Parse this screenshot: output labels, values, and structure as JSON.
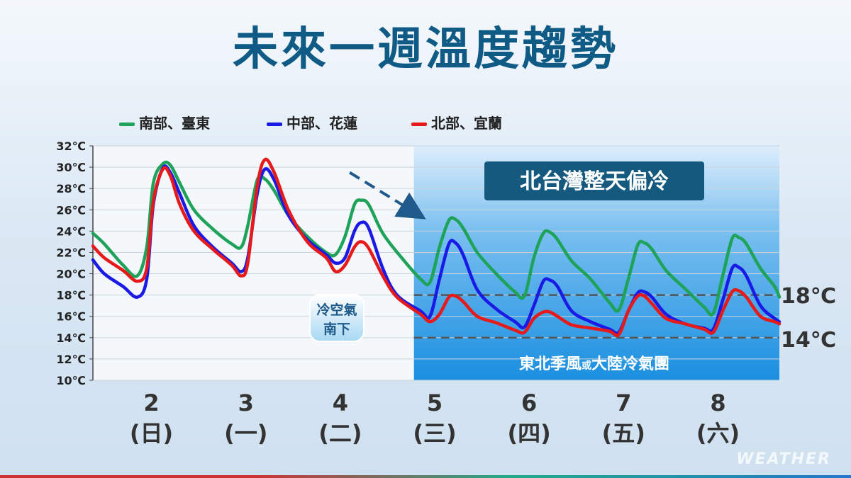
{
  "title": "未來一週溫度趨勢",
  "legend": [
    {
      "label": "南部、臺東",
      "color": "#1fa35a"
    },
    {
      "label": "中部、花蓮",
      "color": "#1a1ae6"
    },
    {
      "label": "北部、宜蘭",
      "color": "#e61a1a"
    }
  ],
  "annotations": {
    "cold_box_title": "北台灣整天偏冷",
    "cold_air_line1": "冷空氣",
    "cold_air_line2": "南下",
    "monsoon_line1": "東北季風",
    "monsoon_small": "或",
    "monsoon_line2": "大陸冷氣團",
    "ref_high": "18℃",
    "ref_low": "14℃"
  },
  "watermark": "WEATHER",
  "chart_data": {
    "type": "line",
    "ylim": [
      10,
      32
    ],
    "y_ticks": [
      "10℃",
      "12℃",
      "14℃",
      "16℃",
      "18℃",
      "20℃",
      "22℃",
      "24℃",
      "26℃",
      "28℃",
      "30℃",
      "32℃"
    ],
    "x_range": [
      1.38,
      8.65
    ],
    "x_ticks": [
      {
        "x": 2,
        "date": "2",
        "weekday": "(日)"
      },
      {
        "x": 3,
        "date": "3",
        "weekday": "(一)"
      },
      {
        "x": 4,
        "date": "4",
        "weekday": "(二)"
      },
      {
        "x": 5,
        "date": "5",
        "weekday": "(三)"
      },
      {
        "x": 6,
        "date": "6",
        "weekday": "(四)"
      },
      {
        "x": 7,
        "date": "7",
        "weekday": "(五)"
      },
      {
        "x": 8,
        "date": "8",
        "weekday": "(六)"
      }
    ],
    "reference_lines": [
      18,
      14
    ],
    "shaded_from_x": 4.78,
    "trend_arrow": {
      "from": [
        4.1,
        29.5
      ],
      "to": [
        4.78,
        25.8
      ]
    },
    "series": [
      {
        "name": "南部、臺東",
        "color": "#1fa35a",
        "points": [
          [
            1.38,
            23.8
          ],
          [
            1.5,
            22.8
          ],
          [
            1.7,
            20.8
          ],
          [
            1.85,
            19.8
          ],
          [
            1.95,
            22.5
          ],
          [
            2.02,
            28.5
          ],
          [
            2.12,
            30.3
          ],
          [
            2.2,
            30.2
          ],
          [
            2.3,
            28.5
          ],
          [
            2.45,
            26.0
          ],
          [
            2.65,
            24.2
          ],
          [
            2.85,
            22.8
          ],
          [
            2.95,
            22.5
          ],
          [
            3.02,
            24.5
          ],
          [
            3.12,
            28.8
          ],
          [
            3.2,
            28.9
          ],
          [
            3.3,
            27.8
          ],
          [
            3.45,
            25.5
          ],
          [
            3.65,
            23.5
          ],
          [
            3.85,
            22.0
          ],
          [
            3.95,
            21.8
          ],
          [
            4.05,
            23.5
          ],
          [
            4.15,
            26.5
          ],
          [
            4.22,
            26.9
          ],
          [
            4.3,
            26.5
          ],
          [
            4.45,
            23.8
          ],
          [
            4.65,
            21.5
          ],
          [
            4.85,
            19.5
          ],
          [
            4.95,
            19.2
          ],
          [
            5.05,
            22.5
          ],
          [
            5.15,
            25.0
          ],
          [
            5.22,
            25.1
          ],
          [
            5.3,
            24.3
          ],
          [
            5.45,
            22.0
          ],
          [
            5.65,
            20.0
          ],
          [
            5.85,
            18.3
          ],
          [
            5.95,
            17.9
          ],
          [
            6.05,
            21.5
          ],
          [
            6.15,
            23.8
          ],
          [
            6.22,
            23.9
          ],
          [
            6.3,
            23.2
          ],
          [
            6.45,
            21.2
          ],
          [
            6.65,
            19.5
          ],
          [
            6.85,
            17.3
          ],
          [
            6.95,
            16.6
          ],
          [
            7.05,
            19.5
          ],
          [
            7.15,
            22.7
          ],
          [
            7.22,
            22.9
          ],
          [
            7.3,
            22.3
          ],
          [
            7.45,
            20.3
          ],
          [
            7.65,
            18.6
          ],
          [
            7.85,
            16.9
          ],
          [
            7.95,
            16.3
          ],
          [
            8.05,
            19.8
          ],
          [
            8.15,
            23.3
          ],
          [
            8.22,
            23.4
          ],
          [
            8.3,
            22.8
          ],
          [
            8.45,
            20.5
          ],
          [
            8.6,
            18.8
          ],
          [
            8.65,
            17.8
          ]
        ]
      },
      {
        "name": "中部、花蓮",
        "color": "#1a1ae6",
        "points": [
          [
            1.38,
            21.3
          ],
          [
            1.5,
            20.0
          ],
          [
            1.7,
            18.8
          ],
          [
            1.85,
            17.8
          ],
          [
            1.95,
            19.5
          ],
          [
            2.02,
            26.5
          ],
          [
            2.12,
            29.9
          ],
          [
            2.2,
            29.5
          ],
          [
            2.3,
            27.5
          ],
          [
            2.45,
            24.5
          ],
          [
            2.65,
            22.5
          ],
          [
            2.85,
            21.0
          ],
          [
            2.95,
            20.2
          ],
          [
            3.02,
            21.5
          ],
          [
            3.12,
            27.5
          ],
          [
            3.2,
            29.8
          ],
          [
            3.3,
            28.8
          ],
          [
            3.45,
            25.5
          ],
          [
            3.65,
            23.2
          ],
          [
            3.85,
            21.8
          ],
          [
            3.95,
            21.0
          ],
          [
            4.05,
            21.5
          ],
          [
            4.15,
            24.0
          ],
          [
            4.22,
            24.8
          ],
          [
            4.3,
            24.3
          ],
          [
            4.45,
            20.5
          ],
          [
            4.6,
            18.0
          ],
          [
            4.85,
            16.5
          ],
          [
            4.95,
            16.0
          ],
          [
            5.05,
            19.5
          ],
          [
            5.15,
            22.8
          ],
          [
            5.22,
            22.9
          ],
          [
            5.3,
            21.8
          ],
          [
            5.45,
            18.5
          ],
          [
            5.65,
            16.7
          ],
          [
            5.85,
            15.5
          ],
          [
            5.95,
            15.0
          ],
          [
            6.05,
            17.0
          ],
          [
            6.15,
            19.3
          ],
          [
            6.22,
            19.4
          ],
          [
            6.3,
            18.8
          ],
          [
            6.45,
            16.5
          ],
          [
            6.65,
            15.5
          ],
          [
            6.85,
            14.8
          ],
          [
            6.95,
            14.5
          ],
          [
            7.05,
            16.5
          ],
          [
            7.15,
            18.2
          ],
          [
            7.22,
            18.3
          ],
          [
            7.3,
            17.8
          ],
          [
            7.45,
            16.2
          ],
          [
            7.65,
            15.3
          ],
          [
            7.85,
            14.9
          ],
          [
            7.95,
            14.8
          ],
          [
            8.05,
            17.5
          ],
          [
            8.15,
            20.5
          ],
          [
            8.22,
            20.6
          ],
          [
            8.3,
            19.8
          ],
          [
            8.45,
            17.0
          ],
          [
            8.6,
            15.8
          ],
          [
            8.65,
            15.5
          ]
        ]
      },
      {
        "name": "北部、宜蘭",
        "color": "#e61a1a",
        "points": [
          [
            1.38,
            22.6
          ],
          [
            1.5,
            21.5
          ],
          [
            1.7,
            20.3
          ],
          [
            1.85,
            19.3
          ],
          [
            1.95,
            20.5
          ],
          [
            2.02,
            26.8
          ],
          [
            2.12,
            29.8
          ],
          [
            2.2,
            29.2
          ],
          [
            2.3,
            26.5
          ],
          [
            2.45,
            24.0
          ],
          [
            2.65,
            22.3
          ],
          [
            2.85,
            20.8
          ],
          [
            2.95,
            19.8
          ],
          [
            3.02,
            21.0
          ],
          [
            3.12,
            28.2
          ],
          [
            3.2,
            30.7
          ],
          [
            3.3,
            29.5
          ],
          [
            3.45,
            26.0
          ],
          [
            3.65,
            23.0
          ],
          [
            3.85,
            21.5
          ],
          [
            3.95,
            20.2
          ],
          [
            4.05,
            20.8
          ],
          [
            4.15,
            22.5
          ],
          [
            4.22,
            23.0
          ],
          [
            4.3,
            22.4
          ],
          [
            4.45,
            19.8
          ],
          [
            4.6,
            17.8
          ],
          [
            4.85,
            16.2
          ],
          [
            4.95,
            15.5
          ],
          [
            5.05,
            16.2
          ],
          [
            5.15,
            17.8
          ],
          [
            5.22,
            17.9
          ],
          [
            5.3,
            17.4
          ],
          [
            5.45,
            16.0
          ],
          [
            5.65,
            15.4
          ],
          [
            5.85,
            14.7
          ],
          [
            5.95,
            14.5
          ],
          [
            6.05,
            15.8
          ],
          [
            6.15,
            16.4
          ],
          [
            6.22,
            16.4
          ],
          [
            6.3,
            16.0
          ],
          [
            6.45,
            15.2
          ],
          [
            6.65,
            14.9
          ],
          [
            6.85,
            14.6
          ],
          [
            6.95,
            14.3
          ],
          [
            7.05,
            16.5
          ],
          [
            7.15,
            17.9
          ],
          [
            7.22,
            17.9
          ],
          [
            7.3,
            17.2
          ],
          [
            7.45,
            15.8
          ],
          [
            7.65,
            15.3
          ],
          [
            7.85,
            14.8
          ],
          [
            7.95,
            14.5
          ],
          [
            8.05,
            16.5
          ],
          [
            8.15,
            18.3
          ],
          [
            8.22,
            18.4
          ],
          [
            8.3,
            17.8
          ],
          [
            8.45,
            16.0
          ],
          [
            8.6,
            15.5
          ],
          [
            8.65,
            15.3
          ]
        ]
      }
    ]
  }
}
